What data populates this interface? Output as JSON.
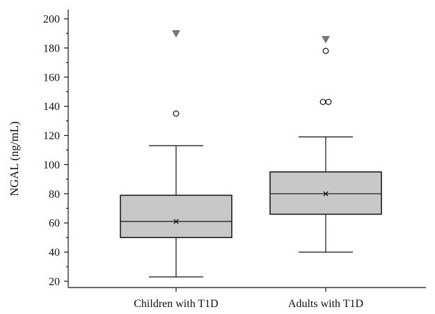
{
  "chart_data": {
    "type": "box",
    "title": "",
    "xlabel": "",
    "ylabel": "NGAL (ng/mL)",
    "ylim": [
      15,
      207
    ],
    "yticks": [
      20,
      40,
      60,
      80,
      100,
      120,
      140,
      160,
      180,
      200
    ],
    "ytick_labels": [
      "20",
      "40",
      "60",
      "80",
      "100",
      "120",
      "140",
      "160",
      "180",
      "200"
    ],
    "grid": false,
    "colors": {
      "box_fill": "#c8c8c8",
      "line": "#111111",
      "extreme_marker": "#7a7a7a"
    },
    "categories": [
      "Children with T1D",
      "Adults with T1D"
    ],
    "boxes": [
      {
        "category": "Children with T1D",
        "whisker_low": 23,
        "q1": 50,
        "median": 61,
        "q3": 79,
        "whisker_high": 113,
        "mean": 61,
        "outliers": [
          135
        ],
        "extremes": [
          190
        ]
      },
      {
        "category": "Adults with T1D",
        "whisker_low": 40,
        "q1": 66,
        "median": 80,
        "q3": 95,
        "whisker_high": 119,
        "mean": 80,
        "outliers": [
          143,
          143,
          178
        ],
        "extremes": [
          186
        ]
      }
    ]
  }
}
